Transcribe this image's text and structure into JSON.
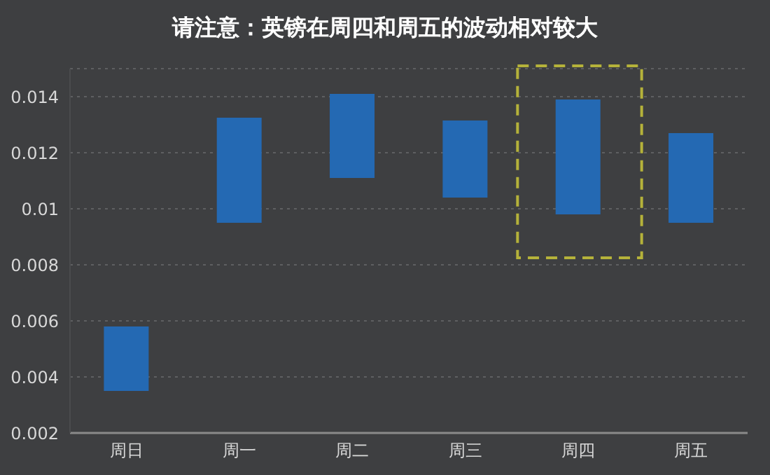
{
  "chart_data": {
    "type": "bar",
    "title": "请注意：英镑在周四和周五的波动相对较大",
    "categories": [
      "周日",
      "周一",
      "周二",
      "周三",
      "周四",
      "周五"
    ],
    "values": [
      0.0023,
      0.00375,
      0.003,
      0.00275,
      0.0041,
      0.0032
    ],
    "base": [
      0.0035,
      0.0095,
      0.0111,
      0.0104,
      0.0098,
      0.0095
    ],
    "color": "#2469b3",
    "ylim": [
      0.002,
      0.015
    ],
    "yticks": [
      0.002,
      0.004,
      0.006,
      0.008,
      0.01,
      0.012,
      0.014
    ],
    "grid": "y"
  }
}
